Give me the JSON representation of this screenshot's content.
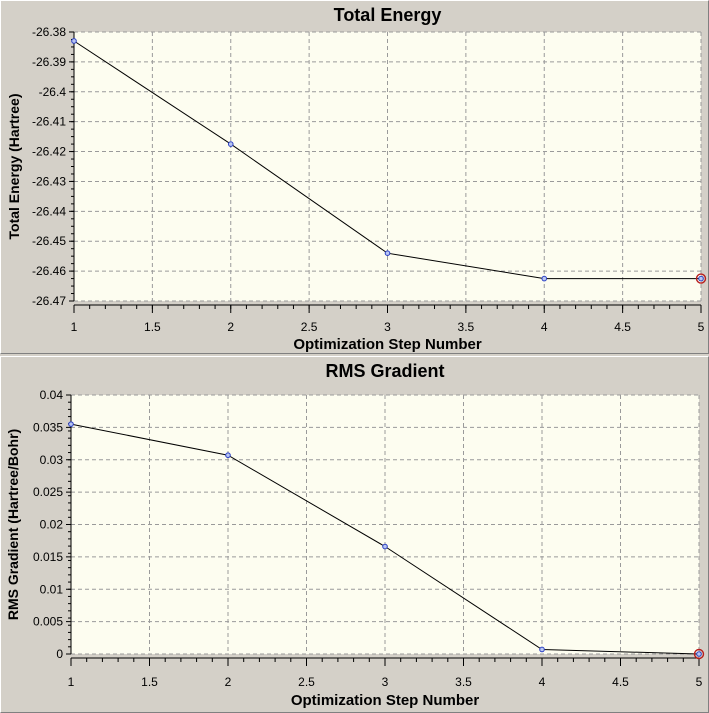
{
  "colors": {
    "panel_bg": "#d4d0c8",
    "plot_bg": "#fdfdf0",
    "grid": "#9a9a9a",
    "line": "#000000",
    "marker_fill": "#b9c6f2",
    "marker_stroke": "#2a3fc4",
    "highlight": "#b81e1e"
  },
  "chart_data": [
    {
      "type": "line",
      "title": "Total Energy",
      "xlabel": "Optimization Step Number",
      "ylabel": "Total Energy (Hartree)",
      "x": [
        1,
        2,
        3,
        4,
        5
      ],
      "values": [
        -26.383,
        -26.4175,
        -26.454,
        -26.4625,
        -26.4625
      ],
      "xlim": [
        1,
        5
      ],
      "ylim": [
        -26.47,
        -26.38
      ],
      "xticks": [
        1,
        1.5,
        2,
        2.5,
        3,
        3.5,
        4,
        4.5,
        5
      ],
      "xtick_labels": [
        "1",
        "1.5",
        "2",
        "2.5",
        "3",
        "3.5",
        "4",
        "4.5",
        "5"
      ],
      "yticks": [
        -26.38,
        -26.39,
        -26.4,
        -26.41,
        -26.42,
        -26.43,
        -26.44,
        -26.45,
        -26.46,
        -26.47
      ],
      "ytick_labels": [
        "-26.38",
        "-26.39",
        "-26.4",
        "-26.41",
        "-26.42",
        "-26.43",
        "-26.44",
        "-26.45",
        "-26.46",
        "-26.47"
      ],
      "grid": true,
      "highlight_point": 5
    },
    {
      "type": "line",
      "title": "RMS Gradient",
      "xlabel": "Optimization Step Number",
      "ylabel": "RMS Gradient (Hartree/Bohr)",
      "x": [
        1,
        2,
        3,
        4,
        5
      ],
      "values": [
        0.0355,
        0.0307,
        0.0166,
        0.0007,
        0.0
      ],
      "xlim": [
        1,
        5
      ],
      "ylim": [
        0,
        0.04
      ],
      "xticks": [
        1,
        1.5,
        2,
        2.5,
        3,
        3.5,
        4,
        4.5,
        5
      ],
      "xtick_labels": [
        "1",
        "1.5",
        "2",
        "2.5",
        "3",
        "3.5",
        "4",
        "4.5",
        "5"
      ],
      "yticks": [
        0.04,
        0.035,
        0.03,
        0.025,
        0.02,
        0.015,
        0.01,
        0.005,
        0
      ],
      "ytick_labels": [
        "0.04",
        "0.035",
        "0.03",
        "0.025",
        "0.02",
        "0.015",
        "0.01",
        "0.005",
        "0"
      ],
      "grid": true,
      "highlight_point": 5
    }
  ]
}
